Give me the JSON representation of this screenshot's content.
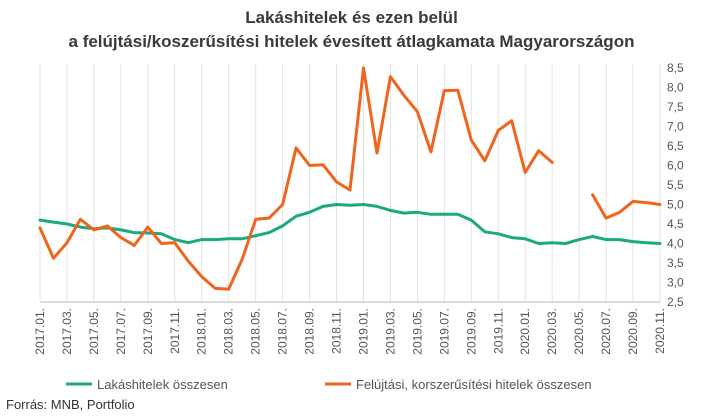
{
  "chart_data": {
    "type": "line",
    "title": "Lakáshitelek és ezen belül",
    "subtitle": "a felújtási/koszerűsítési hitelek évesített átlagkamata Magyarországon",
    "source": "Forrás: MNB, Portfolio",
    "ylim": [
      2.5,
      8.5
    ],
    "yticks": [
      "2,5",
      "3,0",
      "3,5",
      "4,0",
      "4,5",
      "5,0",
      "5,5",
      "6,0",
      "6,5",
      "7,0",
      "7,5",
      "8,0",
      "8,5"
    ],
    "x_labels": [
      "2017.01.",
      "2017.03.",
      "2017.05.",
      "2017.07.",
      "2017.09.",
      "2017.11.",
      "2018.01.",
      "2018.03.",
      "2018.05.",
      "2018.07.",
      "2018.09.",
      "2018.11.",
      "2019.01.",
      "2019.03.",
      "2019.05.",
      "2019.07.",
      "2019.09.",
      "2019.11.",
      "2020.01.",
      "2020.03.",
      "2020.05.",
      "2020.07.",
      "2020.09.",
      "2020.11."
    ],
    "grid": "vertical",
    "legend_position": "bottom",
    "series": [
      {
        "name": "Lakáshitelek összesen",
        "color": "#1aaa7e",
        "values": [
          4.6,
          4.55,
          4.5,
          4.42,
          4.38,
          4.4,
          4.35,
          4.28,
          4.27,
          4.25,
          4.1,
          4.02,
          4.1,
          4.1,
          4.12,
          4.12,
          4.2,
          4.28,
          4.45,
          4.7,
          4.8,
          4.95,
          5.0,
          4.98,
          5.0,
          4.95,
          4.85,
          4.78,
          4.8,
          4.75,
          4.75,
          4.75,
          4.6,
          4.3,
          4.25,
          4.15,
          4.12,
          4.0,
          4.02,
          4.0,
          4.1,
          4.18,
          4.1,
          4.1,
          4.05,
          4.02,
          4.0
        ]
      },
      {
        "name": "Felújtási, korszerűsítési hitelek összesen",
        "color": "#f0641e",
        "values": [
          4.4,
          3.62,
          4.02,
          4.62,
          4.35,
          4.45,
          4.15,
          3.95,
          4.42,
          4.0,
          4.02,
          3.55,
          3.15,
          2.85,
          2.83,
          3.6,
          4.62,
          4.65,
          5.0,
          6.45,
          6.0,
          6.02,
          5.58,
          5.37,
          8.5,
          6.32,
          8.28,
          7.8,
          7.38,
          6.35,
          7.92,
          7.93,
          6.65,
          6.12,
          6.9,
          7.15,
          5.82,
          6.38,
          6.08,
          null,
          null,
          5.25,
          4.65,
          4.8,
          5.08,
          5.05,
          5.0
        ]
      }
    ]
  }
}
